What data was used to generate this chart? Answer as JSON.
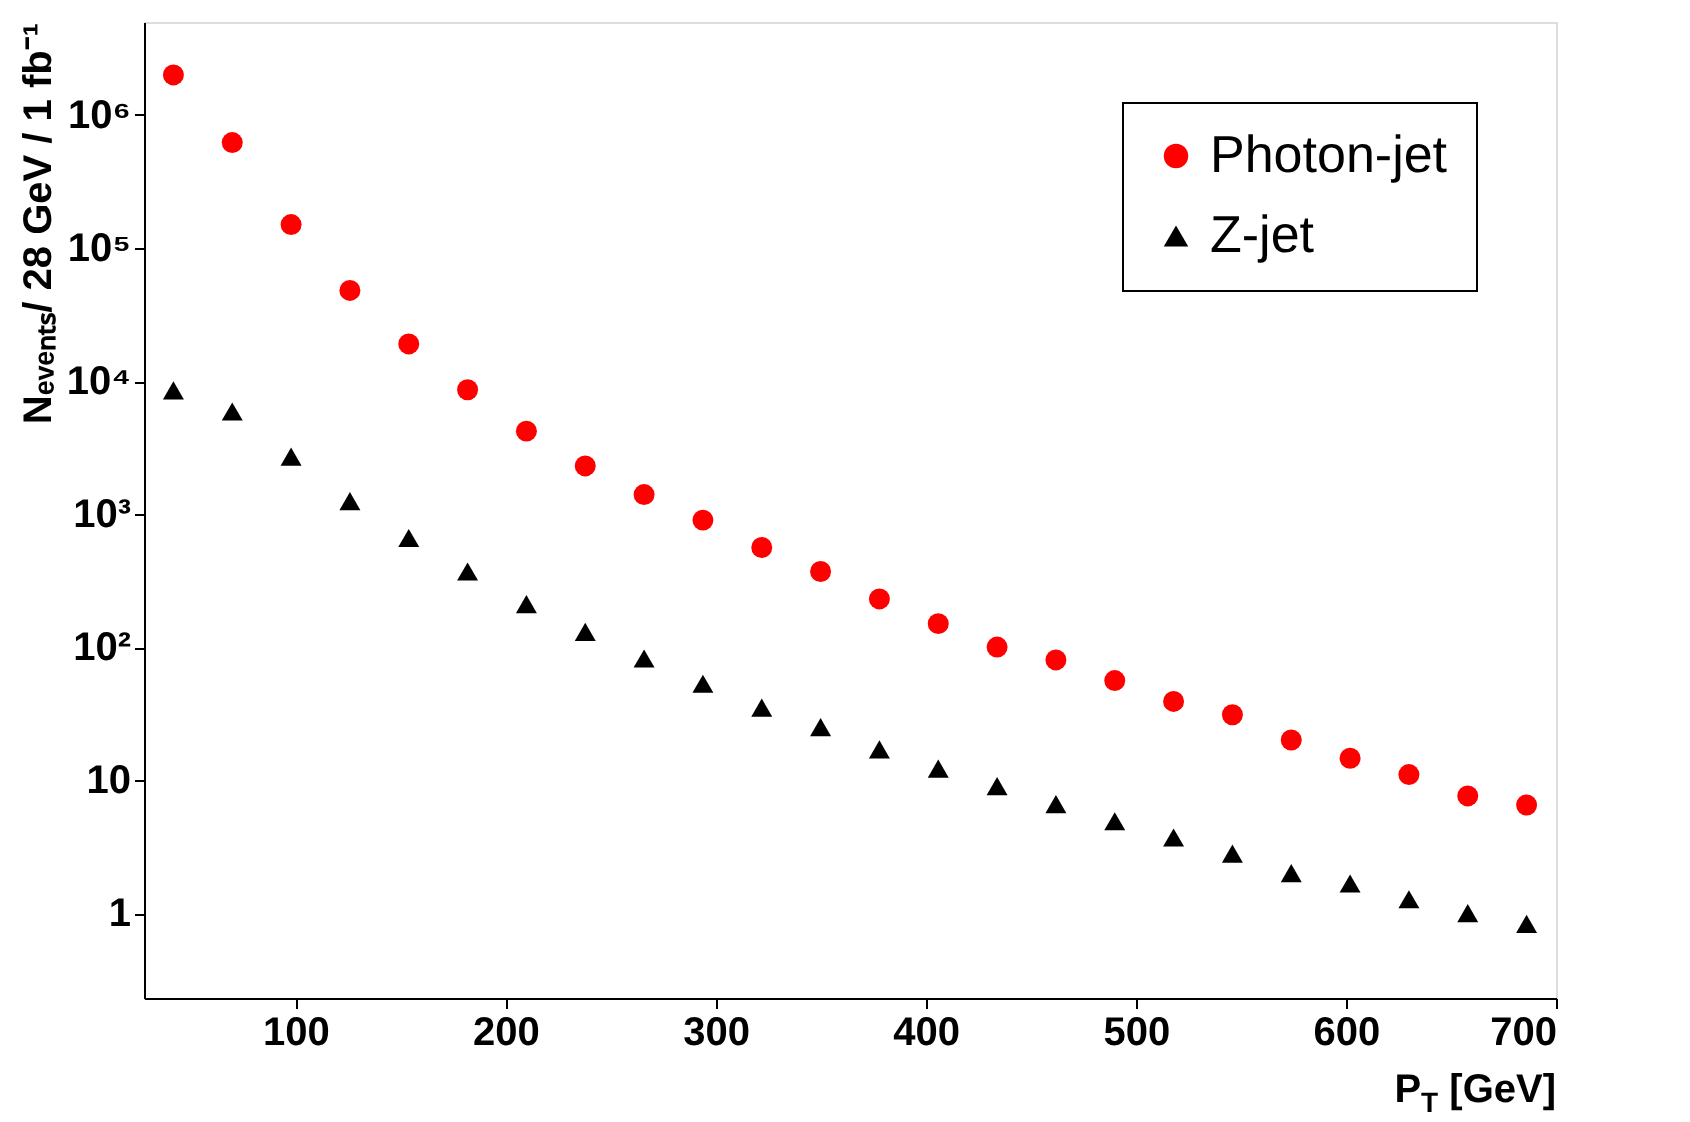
{
  "chart_data": {
    "type": "scatter",
    "xlabel": "P$_{T}$ [GeV]",
    "ylabel": "Nₑᵥₑₙₜₛ/ 28 GeV / 1 fb⁻¹",
    "x": [
      42,
      70,
      98,
      126,
      154,
      182,
      210,
      238,
      266,
      294,
      322,
      350,
      378,
      406,
      434,
      462,
      490,
      518,
      546,
      574,
      602,
      630,
      658,
      686
    ],
    "series": [
      {
        "name": "Photon-jet",
        "color": "#ff0000",
        "marker": "circle",
        "values": [
          2000000,
          620000,
          150000,
          48000,
          19000,
          8600,
          4200,
          2300,
          1400,
          900,
          560,
          370,
          230,
          150,
          100,
          80,
          56,
          39,
          31,
          20,
          14.6,
          11,
          7.6,
          6.5
        ]
      },
      {
        "name": "Z-jet",
        "color": "#000000",
        "marker": "triangle",
        "values": [
          8500,
          5900,
          2700,
          1250,
          660,
          370,
          210,
          130,
          82,
          53,
          35,
          25,
          17,
          12.2,
          9,
          6.6,
          4.9,
          3.7,
          2.8,
          2.0,
          1.67,
          1.27,
          1.0,
          0.83
        ]
      }
    ],
    "xlim": [
      28,
      700
    ],
    "xticks": [
      100,
      200,
      300,
      400,
      500,
      600,
      700
    ],
    "ylim": [
      0.23,
      5000000
    ],
    "yticks": [
      1,
      10,
      {
        "value": 100,
        "label": "10²"
      },
      {
        "value": 1000,
        "label": "10³"
      },
      {
        "value": 10000,
        "label": "10⁴"
      },
      {
        "value": 100000,
        "label": "10⁵"
      },
      {
        "value": 1000000,
        "label": "10⁶"
      }
    ],
    "log": "y",
    "grid": false,
    "legend": "top right"
  }
}
